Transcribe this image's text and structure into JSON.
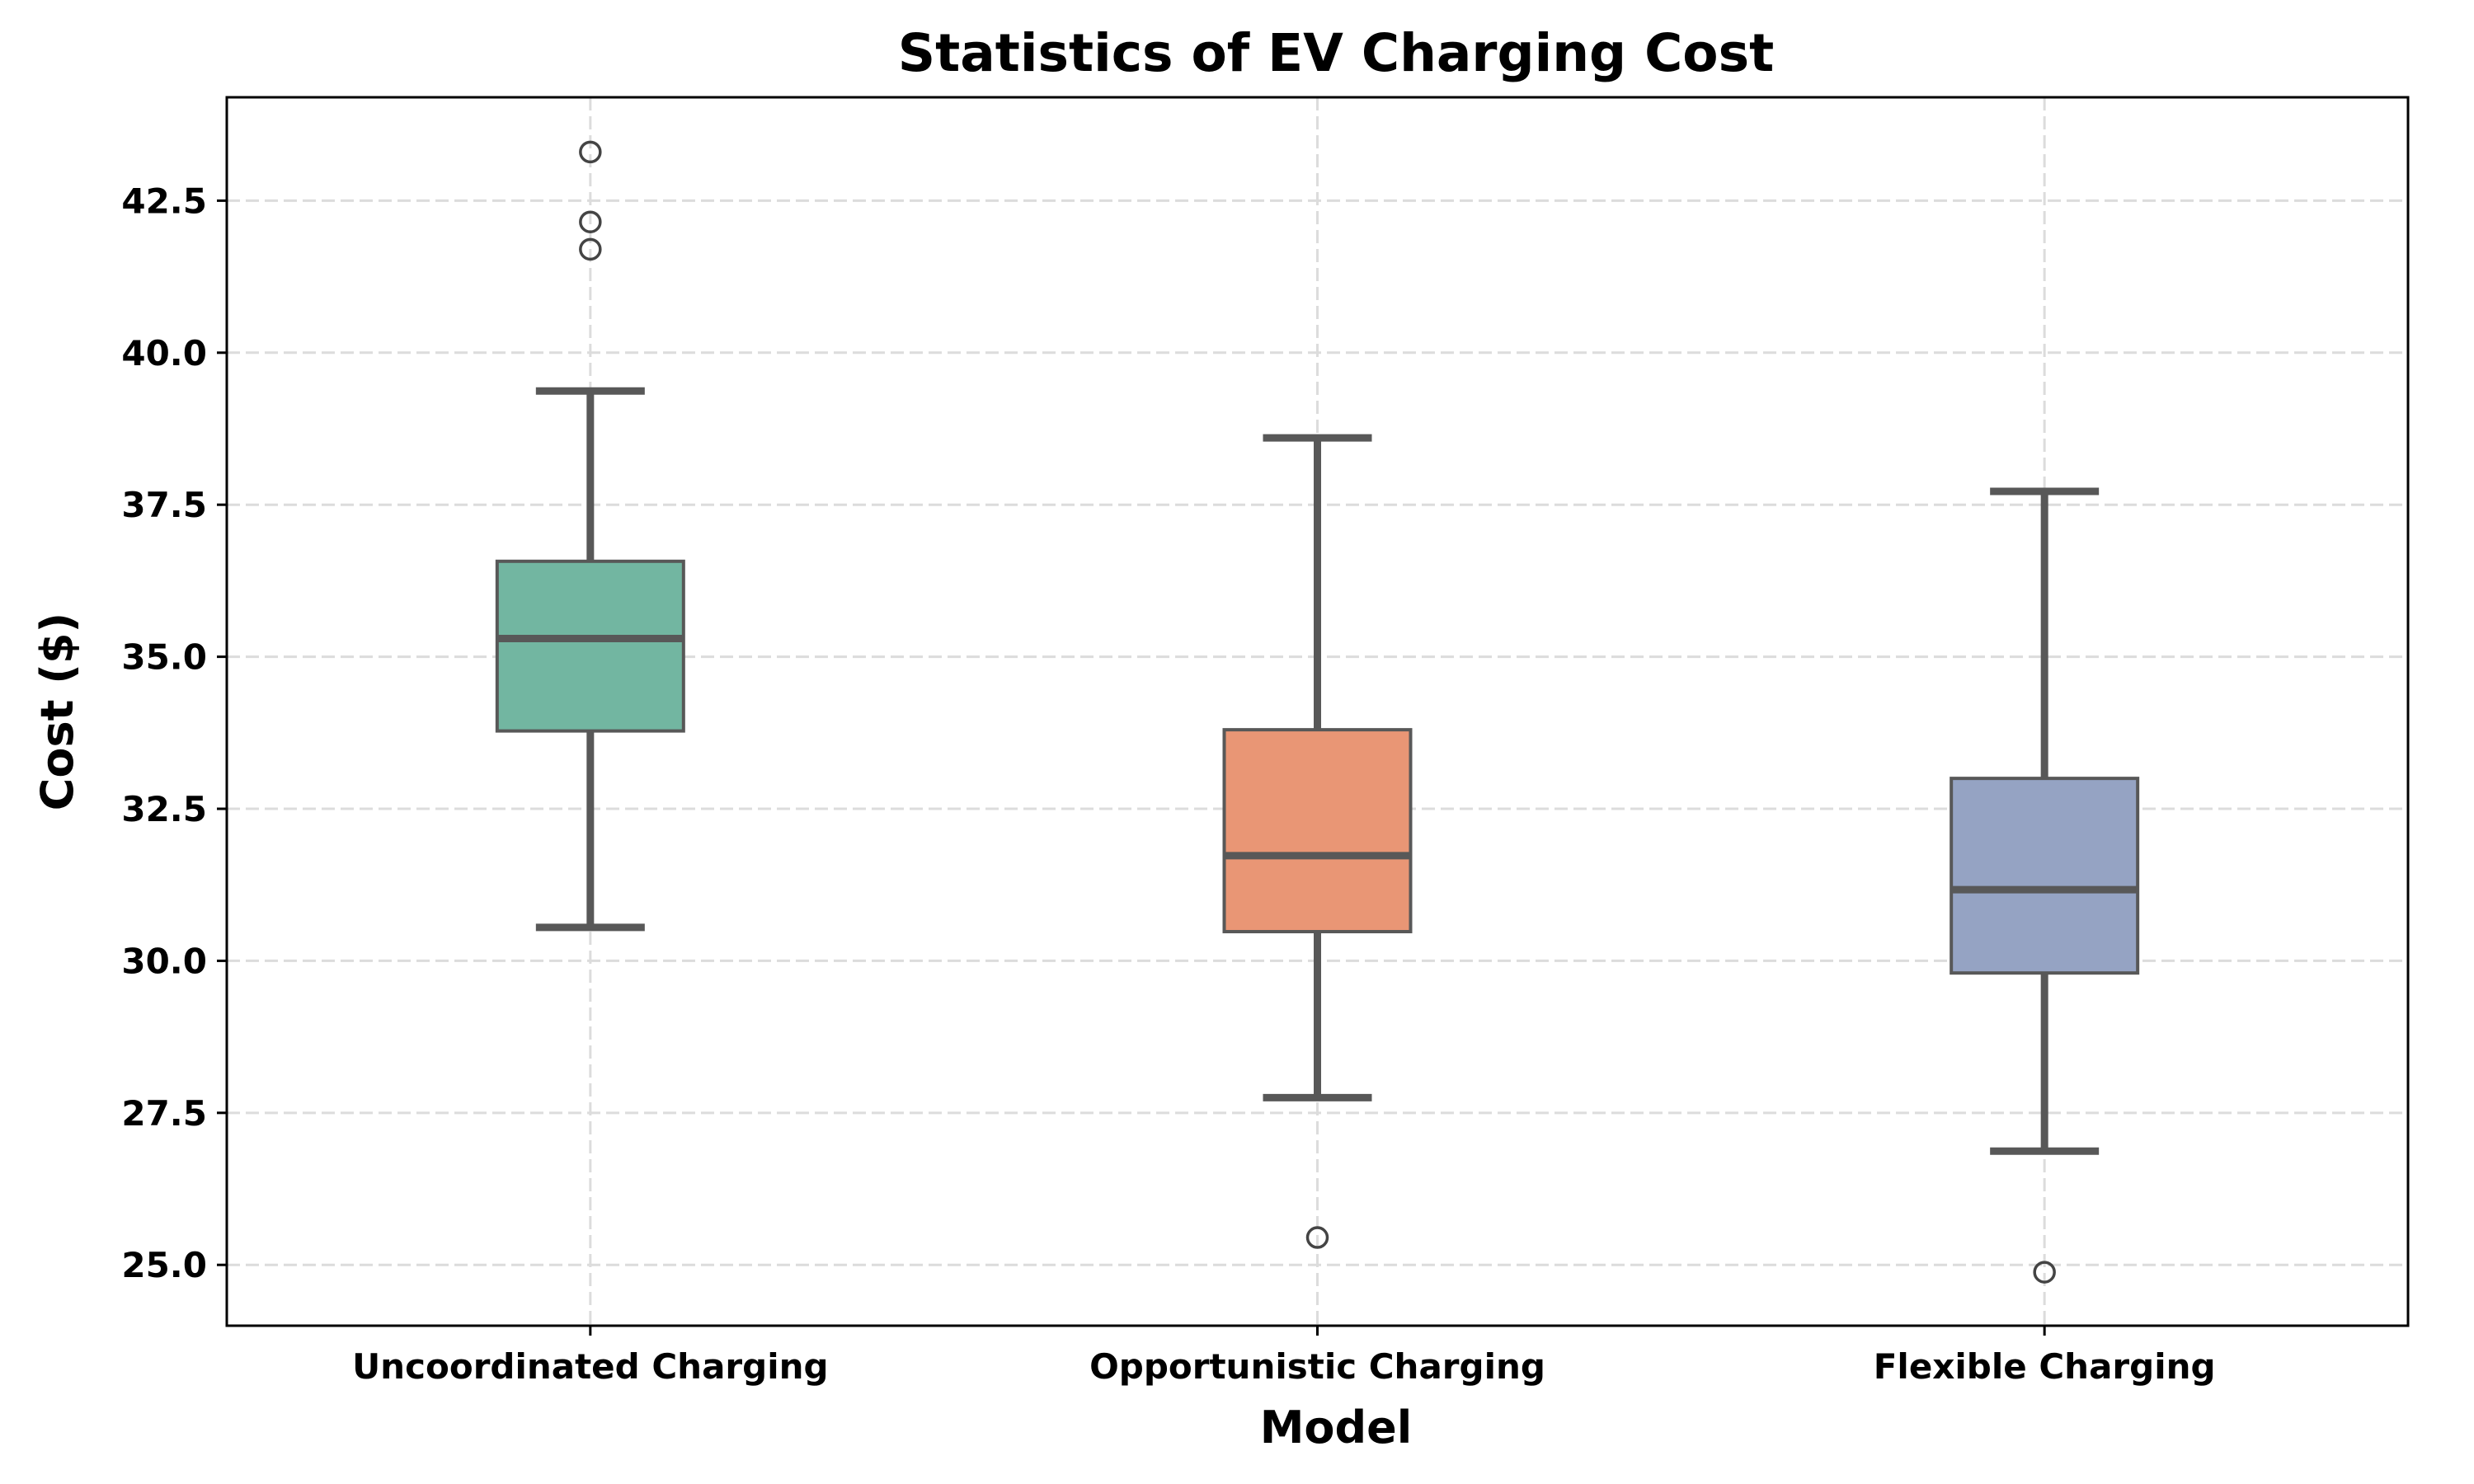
{
  "chart_data": {
    "type": "box",
    "title": "Statistics of EV Charging Cost",
    "xlabel": "Model",
    "ylabel": "Cost ($)",
    "ylim": [
      24.0,
      44.2
    ],
    "yticks": [
      25.0,
      27.5,
      30.0,
      32.5,
      35.0,
      37.5,
      40.0,
      42.5
    ],
    "ytick_labels": [
      "25.0",
      "27.5",
      "30.0",
      "32.5",
      "35.0",
      "37.5",
      "40.0",
      "42.5"
    ],
    "grid": true,
    "categories": [
      "Uncoordinated Charging",
      "Opportunistic Charging",
      "Flexible Charging"
    ],
    "boxes": [
      {
        "category": "Uncoordinated Charging",
        "whisker_low": 30.55,
        "q1": 33.78,
        "median": 35.3,
        "q3": 36.57,
        "whisker_high": 39.37,
        "outliers": [
          41.7,
          42.15,
          43.3
        ],
        "color": "#72b6a1"
      },
      {
        "category": "Opportunistic Charging",
        "whisker_low": 27.75,
        "q1": 30.48,
        "median": 31.73,
        "q3": 33.8,
        "whisker_high": 38.6,
        "outliers": [
          25.45
        ],
        "color": "#e99675"
      },
      {
        "category": "Flexible Charging",
        "whisker_low": 26.87,
        "q1": 29.8,
        "median": 31.17,
        "q3": 33.0,
        "whisker_high": 37.72,
        "outliers": [
          24.88
        ],
        "color": "#95a3c3"
      }
    ]
  }
}
